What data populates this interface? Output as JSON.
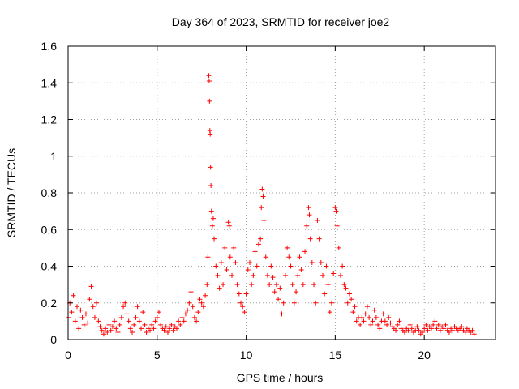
{
  "chart_data": {
    "type": "scatter",
    "title": "Day 364 of 2023, SRMTID for receiver joe2",
    "xlabel": "GPS time / hours",
    "ylabel": "SRMTID / TECUs",
    "xlim": [
      0,
      24
    ],
    "ylim": [
      0,
      1.6
    ],
    "xticks": [
      0,
      5,
      10,
      15,
      20
    ],
    "xtick_labels": [
      "0",
      "5",
      "10",
      "15",
      "20"
    ],
    "yticks": [
      0,
      0.2,
      0.4,
      0.6,
      0.8,
      1.0,
      1.2,
      1.4,
      1.6
    ],
    "ytick_labels": [
      "0",
      "0.2",
      "0.4",
      "0.6",
      "0.8",
      "1",
      "1.2",
      "1.4",
      "1.6"
    ],
    "grid": true,
    "marker": "+",
    "color": "#ff0000",
    "series": [
      {
        "name": "SRMTID",
        "points": [
          [
            0.0,
            0.12
          ],
          [
            0.1,
            0.2
          ],
          [
            0.2,
            0.15
          ],
          [
            0.3,
            0.24
          ],
          [
            0.4,
            0.1
          ],
          [
            0.5,
            0.18
          ],
          [
            0.6,
            0.06
          ],
          [
            0.7,
            0.16
          ],
          [
            0.8,
            0.12
          ],
          [
            0.9,
            0.08
          ],
          [
            1.0,
            0.14
          ],
          [
            1.1,
            0.09
          ],
          [
            1.2,
            0.22
          ],
          [
            1.3,
            0.29
          ],
          [
            1.4,
            0.18
          ],
          [
            1.5,
            0.12
          ],
          [
            1.6,
            0.2
          ],
          [
            1.7,
            0.1
          ],
          [
            1.8,
            0.07
          ],
          [
            1.9,
            0.05
          ],
          [
            2.0,
            0.03
          ],
          [
            2.1,
            0.06
          ],
          [
            2.2,
            0.04
          ],
          [
            2.3,
            0.08
          ],
          [
            2.4,
            0.05
          ],
          [
            2.5,
            0.07
          ],
          [
            2.6,
            0.1
          ],
          [
            2.7,
            0.06
          ],
          [
            2.8,
            0.04
          ],
          [
            2.9,
            0.08
          ],
          [
            3.0,
            0.12
          ],
          [
            3.1,
            0.18
          ],
          [
            3.2,
            0.2
          ],
          [
            3.3,
            0.14
          ],
          [
            3.4,
            0.1
          ],
          [
            3.5,
            0.06
          ],
          [
            3.6,
            0.04
          ],
          [
            3.7,
            0.08
          ],
          [
            3.8,
            0.12
          ],
          [
            3.9,
            0.18
          ],
          [
            4.0,
            0.1
          ],
          [
            4.1,
            0.06
          ],
          [
            4.2,
            0.15
          ],
          [
            4.3,
            0.08
          ],
          [
            4.4,
            0.04
          ],
          [
            4.5,
            0.06
          ],
          [
            4.6,
            0.05
          ],
          [
            4.7,
            0.08
          ],
          [
            4.8,
            0.06
          ],
          [
            4.9,
            0.1
          ],
          [
            5.0,
            0.12
          ],
          [
            5.1,
            0.15
          ],
          [
            5.2,
            0.08
          ],
          [
            5.3,
            0.06
          ],
          [
            5.4,
            0.05
          ],
          [
            5.5,
            0.07
          ],
          [
            5.6,
            0.04
          ],
          [
            5.7,
            0.06
          ],
          [
            5.8,
            0.08
          ],
          [
            5.9,
            0.05
          ],
          [
            6.0,
            0.07
          ],
          [
            6.1,
            0.06
          ],
          [
            6.2,
            0.1
          ],
          [
            6.3,
            0.08
          ],
          [
            6.4,
            0.12
          ],
          [
            6.5,
            0.1
          ],
          [
            6.6,
            0.14
          ],
          [
            6.7,
            0.16
          ],
          [
            6.8,
            0.2
          ],
          [
            6.9,
            0.26
          ],
          [
            7.0,
            0.18
          ],
          [
            7.1,
            0.12
          ],
          [
            7.2,
            0.1
          ],
          [
            7.3,
            0.15
          ],
          [
            7.4,
            0.22
          ],
          [
            7.5,
            0.2
          ],
          [
            7.6,
            0.18
          ],
          [
            7.7,
            0.24
          ],
          [
            7.8,
            0.3
          ],
          [
            7.85,
            0.45
          ],
          [
            7.9,
            1.44
          ],
          [
            7.92,
            1.41
          ],
          [
            7.94,
            1.3
          ],
          [
            7.96,
            1.14
          ],
          [
            7.98,
            1.12
          ],
          [
            8.0,
            0.94
          ],
          [
            8.02,
            0.84
          ],
          [
            8.05,
            0.7
          ],
          [
            8.1,
            0.62
          ],
          [
            8.15,
            0.66
          ],
          [
            8.2,
            0.55
          ],
          [
            8.3,
            0.4
          ],
          [
            8.4,
            0.35
          ],
          [
            8.5,
            0.28
          ],
          [
            8.6,
            0.42
          ],
          [
            8.7,
            0.3
          ],
          [
            8.8,
            0.5
          ],
          [
            8.9,
            0.38
          ],
          [
            9.0,
            0.64
          ],
          [
            9.05,
            0.62
          ],
          [
            9.1,
            0.45
          ],
          [
            9.2,
            0.35
          ],
          [
            9.3,
            0.5
          ],
          [
            9.4,
            0.42
          ],
          [
            9.5,
            0.3
          ],
          [
            9.6,
            0.25
          ],
          [
            9.7,
            0.2
          ],
          [
            9.8,
            0.18
          ],
          [
            9.9,
            0.15
          ],
          [
            10.0,
            0.25
          ],
          [
            10.1,
            0.38
          ],
          [
            10.2,
            0.42
          ],
          [
            10.3,
            0.3
          ],
          [
            10.4,
            0.35
          ],
          [
            10.5,
            0.48
          ],
          [
            10.6,
            0.4
          ],
          [
            10.7,
            0.52
          ],
          [
            10.8,
            0.55
          ],
          [
            10.85,
            0.72
          ],
          [
            10.9,
            0.82
          ],
          [
            10.95,
            0.78
          ],
          [
            11.0,
            0.65
          ],
          [
            11.1,
            0.45
          ],
          [
            11.2,
            0.35
          ],
          [
            11.3,
            0.3
          ],
          [
            11.4,
            0.4
          ],
          [
            11.5,
            0.34
          ],
          [
            11.6,
            0.26
          ],
          [
            11.7,
            0.3
          ],
          [
            11.8,
            0.22
          ],
          [
            11.9,
            0.28
          ],
          [
            12.0,
            0.14
          ],
          [
            12.1,
            0.2
          ],
          [
            12.2,
            0.35
          ],
          [
            12.3,
            0.5
          ],
          [
            12.4,
            0.45
          ],
          [
            12.5,
            0.4
          ],
          [
            12.6,
            0.3
          ],
          [
            12.7,
            0.2
          ],
          [
            12.8,
            0.26
          ],
          [
            12.9,
            0.35
          ],
          [
            13.0,
            0.45
          ],
          [
            13.1,
            0.38
          ],
          [
            13.2,
            0.3
          ],
          [
            13.3,
            0.48
          ],
          [
            13.4,
            0.62
          ],
          [
            13.5,
            0.72
          ],
          [
            13.55,
            0.68
          ],
          [
            13.6,
            0.55
          ],
          [
            13.7,
            0.42
          ],
          [
            13.8,
            0.3
          ],
          [
            13.9,
            0.2
          ],
          [
            14.0,
            0.65
          ],
          [
            14.1,
            0.55
          ],
          [
            14.2,
            0.42
          ],
          [
            14.3,
            0.35
          ],
          [
            14.4,
            0.25
          ],
          [
            14.5,
            0.4
          ],
          [
            14.6,
            0.3
          ],
          [
            14.7,
            0.15
          ],
          [
            14.8,
            0.2
          ],
          [
            14.9,
            0.36
          ],
          [
            15.0,
            0.72
          ],
          [
            15.05,
            0.7
          ],
          [
            15.1,
            0.62
          ],
          [
            15.2,
            0.5
          ],
          [
            15.3,
            0.35
          ],
          [
            15.4,
            0.4
          ],
          [
            15.5,
            0.3
          ],
          [
            15.6,
            0.28
          ],
          [
            15.7,
            0.2
          ],
          [
            15.8,
            0.25
          ],
          [
            15.9,
            0.22
          ],
          [
            16.0,
            0.15
          ],
          [
            16.1,
            0.18
          ],
          [
            16.2,
            0.1
          ],
          [
            16.3,
            0.12
          ],
          [
            16.4,
            0.08
          ],
          [
            16.5,
            0.12
          ],
          [
            16.6,
            0.1
          ],
          [
            16.7,
            0.14
          ],
          [
            16.8,
            0.18
          ],
          [
            16.9,
            0.12
          ],
          [
            17.0,
            0.08
          ],
          [
            17.1,
            0.1
          ],
          [
            17.2,
            0.16
          ],
          [
            17.3,
            0.12
          ],
          [
            17.4,
            0.08
          ],
          [
            17.5,
            0.06
          ],
          [
            17.6,
            0.1
          ],
          [
            17.7,
            0.14
          ],
          [
            17.8,
            0.1
          ],
          [
            17.9,
            0.08
          ],
          [
            18.0,
            0.12
          ],
          [
            18.1,
            0.09
          ],
          [
            18.2,
            0.07
          ],
          [
            18.3,
            0.06
          ],
          [
            18.4,
            0.05
          ],
          [
            18.5,
            0.08
          ],
          [
            18.6,
            0.1
          ],
          [
            18.7,
            0.06
          ],
          [
            18.8,
            0.05
          ],
          [
            18.9,
            0.04
          ],
          [
            19.0,
            0.06
          ],
          [
            19.1,
            0.05
          ],
          [
            19.2,
            0.08
          ],
          [
            19.3,
            0.06
          ],
          [
            19.4,
            0.04
          ],
          [
            19.5,
            0.05
          ],
          [
            19.6,
            0.07
          ],
          [
            19.7,
            0.05
          ],
          [
            19.8,
            0.03
          ],
          [
            19.9,
            0.04
          ],
          [
            20.0,
            0.06
          ],
          [
            20.1,
            0.08
          ],
          [
            20.2,
            0.05
          ],
          [
            20.3,
            0.07
          ],
          [
            20.4,
            0.06
          ],
          [
            20.5,
            0.08
          ],
          [
            20.6,
            0.1
          ],
          [
            20.7,
            0.06
          ],
          [
            20.8,
            0.08
          ],
          [
            20.9,
            0.05
          ],
          [
            21.0,
            0.07
          ],
          [
            21.1,
            0.06
          ],
          [
            21.2,
            0.08
          ],
          [
            21.3,
            0.05
          ],
          [
            21.4,
            0.04
          ],
          [
            21.5,
            0.06
          ],
          [
            21.6,
            0.05
          ],
          [
            21.7,
            0.07
          ],
          [
            21.8,
            0.06
          ],
          [
            21.9,
            0.05
          ],
          [
            22.0,
            0.06
          ],
          [
            22.1,
            0.07
          ],
          [
            22.2,
            0.05
          ],
          [
            22.3,
            0.04
          ],
          [
            22.4,
            0.06
          ],
          [
            22.5,
            0.05
          ],
          [
            22.6,
            0.04
          ],
          [
            22.7,
            0.05
          ],
          [
            22.8,
            0.03
          ]
        ]
      }
    ]
  }
}
